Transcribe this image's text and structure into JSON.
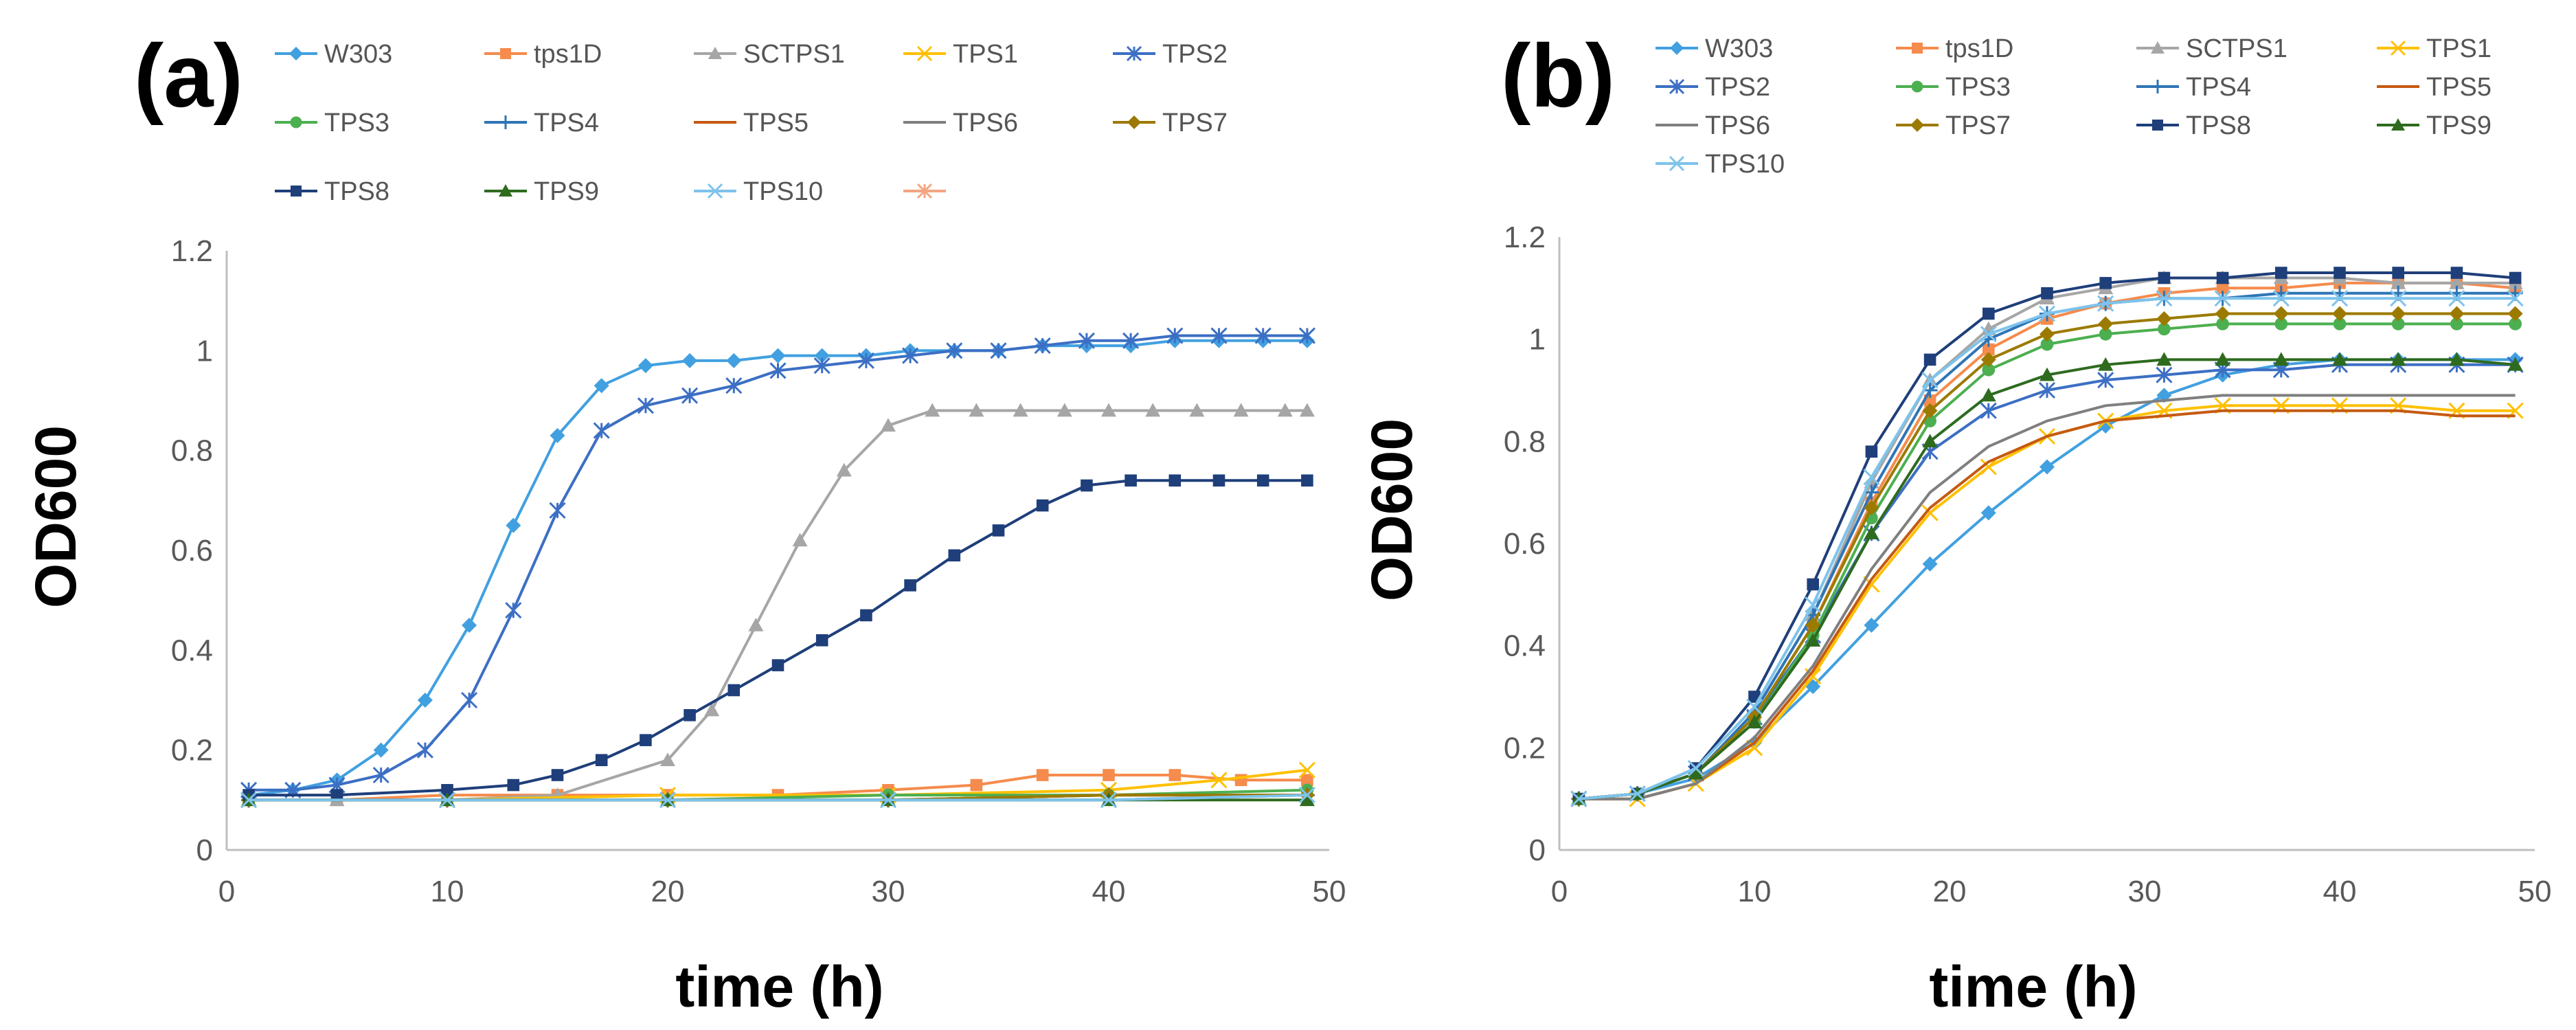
{
  "chart_data": [
    {
      "panel_label": "(a)",
      "type": "line",
      "xlabel": "time (h)",
      "ylabel": "OD600",
      "xlim": [
        0,
        50
      ],
      "ylim": [
        0,
        1.2
      ],
      "xticks": [
        "0",
        "10",
        "20",
        "30",
        "40",
        "50"
      ],
      "yticks": [
        "0",
        "0.2",
        "0.4",
        "0.6",
        "0.8",
        "1",
        "1.2"
      ],
      "legend_position": "top",
      "legend_extra_entry": "",
      "grid": false,
      "series": [
        {
          "name": "W303",
          "color": "#41A0E0",
          "marker": "diamond",
          "x": [
            1,
            3,
            5,
            7,
            9,
            11,
            13,
            15,
            17,
            19,
            21,
            23,
            25,
            27,
            29,
            31,
            33,
            35,
            37,
            39,
            41,
            43,
            45,
            47,
            49
          ],
          "y": [
            0.11,
            0.12,
            0.14,
            0.2,
            0.3,
            0.45,
            0.65,
            0.83,
            0.93,
            0.97,
            0.98,
            0.98,
            0.99,
            0.99,
            0.99,
            1.0,
            1.0,
            1.0,
            1.01,
            1.01,
            1.01,
            1.02,
            1.02,
            1.02,
            1.02
          ]
        },
        {
          "name": "tps1D",
          "color": "#F58B4C",
          "marker": "square",
          "x": [
            1,
            5,
            10,
            15,
            20,
            25,
            30,
            34,
            37,
            40,
            43,
            46,
            49
          ],
          "y": [
            0.1,
            0.1,
            0.11,
            0.11,
            0.11,
            0.11,
            0.12,
            0.13,
            0.15,
            0.15,
            0.15,
            0.14,
            0.14
          ]
        },
        {
          "name": "SCTPS1",
          "color": "#A6A6A6",
          "marker": "triangle",
          "x": [
            1,
            5,
            10,
            15,
            20,
            22,
            24,
            26,
            28,
            30,
            32,
            34,
            36,
            38,
            40,
            42,
            44,
            46,
            48,
            49
          ],
          "y": [
            0.1,
            0.1,
            0.1,
            0.11,
            0.18,
            0.28,
            0.45,
            0.62,
            0.76,
            0.85,
            0.88,
            0.88,
            0.88,
            0.88,
            0.88,
            0.88,
            0.88,
            0.88,
            0.88,
            0.88
          ]
        },
        {
          "name": "TPS1",
          "color": "#FFC000",
          "marker": "x",
          "x": [
            1,
            10,
            20,
            30,
            40,
            45,
            49
          ],
          "y": [
            0.1,
            0.1,
            0.11,
            0.11,
            0.12,
            0.14,
            0.16
          ]
        },
        {
          "name": "TPS2",
          "color": "#3C6FC4",
          "marker": "star",
          "x": [
            1,
            3,
            5,
            7,
            9,
            11,
            13,
            15,
            17,
            19,
            21,
            23,
            25,
            27,
            29,
            31,
            33,
            35,
            37,
            39,
            41,
            43,
            45,
            47,
            49
          ],
          "y": [
            0.12,
            0.12,
            0.13,
            0.15,
            0.2,
            0.3,
            0.48,
            0.68,
            0.84,
            0.89,
            0.91,
            0.93,
            0.96,
            0.97,
            0.98,
            0.99,
            1.0,
            1.0,
            1.01,
            1.02,
            1.02,
            1.03,
            1.03,
            1.03,
            1.03
          ]
        },
        {
          "name": "TPS3",
          "color": "#4CAF50",
          "marker": "circle",
          "x": [
            1,
            10,
            20,
            30,
            40,
            49
          ],
          "y": [
            0.1,
            0.1,
            0.1,
            0.11,
            0.11,
            0.12
          ]
        },
        {
          "name": "TPS4",
          "color": "#2E75B6",
          "marker": "plus",
          "x": [
            1,
            10,
            20,
            30,
            40,
            49
          ],
          "y": [
            0.1,
            0.1,
            0.1,
            0.1,
            0.11,
            0.11
          ]
        },
        {
          "name": "TPS5",
          "color": "#C55A11",
          "marker": "none",
          "x": [
            1,
            10,
            20,
            30,
            40,
            49
          ],
          "y": [
            0.1,
            0.1,
            0.1,
            0.1,
            0.11,
            0.11
          ]
        },
        {
          "name": "TPS6",
          "color": "#7F7F7F",
          "marker": "none",
          "x": [
            1,
            10,
            20,
            30,
            40,
            49
          ],
          "y": [
            0.1,
            0.1,
            0.1,
            0.1,
            0.1,
            0.11
          ]
        },
        {
          "name": "TPS7",
          "color": "#9C7A00",
          "marker": "diamond",
          "x": [
            1,
            10,
            20,
            30,
            40,
            49
          ],
          "y": [
            0.1,
            0.1,
            0.1,
            0.1,
            0.11,
            0.11
          ]
        },
        {
          "name": "TPS8",
          "color": "#1F3F7A",
          "marker": "square",
          "x": [
            1,
            5,
            10,
            13,
            15,
            17,
            19,
            21,
            23,
            25,
            27,
            29,
            31,
            33,
            35,
            37,
            39,
            41,
            43,
            45,
            47,
            49
          ],
          "y": [
            0.11,
            0.11,
            0.12,
            0.13,
            0.15,
            0.18,
            0.22,
            0.27,
            0.32,
            0.37,
            0.42,
            0.47,
            0.53,
            0.59,
            0.64,
            0.69,
            0.73,
            0.74,
            0.74,
            0.74,
            0.74,
            0.74
          ]
        },
        {
          "name": "TPS9",
          "color": "#2E6B1F",
          "marker": "triangle",
          "x": [
            1,
            10,
            20,
            30,
            40,
            49
          ],
          "y": [
            0.1,
            0.1,
            0.1,
            0.1,
            0.1,
            0.1
          ]
        },
        {
          "name": "TPS10",
          "color": "#7EC3EB",
          "marker": "x",
          "x": [
            1,
            10,
            20,
            30,
            40,
            49
          ],
          "y": [
            0.1,
            0.1,
            0.1,
            0.1,
            0.1,
            0.11
          ]
        }
      ]
    },
    {
      "panel_label": "(b)",
      "type": "line",
      "xlabel": "time (h)",
      "ylabel": "OD600",
      "xlim": [
        0,
        50
      ],
      "ylim": [
        0,
        1.2
      ],
      "xticks": [
        "0",
        "10",
        "20",
        "30",
        "40",
        "50"
      ],
      "yticks": [
        "0",
        "0.2",
        "0.4",
        "0.6",
        "0.8",
        "1",
        "1.2"
      ],
      "legend_position": "top",
      "grid": false,
      "series": [
        {
          "name": "W303",
          "color": "#41A0E0",
          "marker": "diamond",
          "x": [
            1,
            4,
            7,
            10,
            13,
            16,
            19,
            22,
            25,
            28,
            31,
            34,
            37,
            40,
            43,
            46,
            49
          ],
          "y": [
            0.1,
            0.11,
            0.14,
            0.21,
            0.32,
            0.44,
            0.56,
            0.66,
            0.75,
            0.83,
            0.89,
            0.93,
            0.95,
            0.96,
            0.96,
            0.96,
            0.96
          ]
        },
        {
          "name": "tps1D",
          "color": "#F58B4C",
          "marker": "square",
          "x": [
            1,
            4,
            7,
            10,
            13,
            16,
            19,
            22,
            25,
            28,
            31,
            34,
            37,
            40,
            43,
            46,
            49
          ],
          "y": [
            0.1,
            0.11,
            0.15,
            0.26,
            0.44,
            0.68,
            0.88,
            0.98,
            1.04,
            1.07,
            1.09,
            1.1,
            1.1,
            1.11,
            1.11,
            1.11,
            1.1
          ]
        },
        {
          "name": "SCTPS1",
          "color": "#A6A6A6",
          "marker": "triangle",
          "x": [
            1,
            4,
            7,
            10,
            13,
            16,
            19,
            22,
            25,
            28,
            31,
            34,
            37,
            40,
            43,
            46,
            49
          ],
          "y": [
            0.1,
            0.11,
            0.15,
            0.27,
            0.46,
            0.72,
            0.92,
            1.02,
            1.08,
            1.1,
            1.12,
            1.12,
            1.12,
            1.12,
            1.11,
            1.11,
            1.11
          ]
        },
        {
          "name": "TPS1",
          "color": "#FFC000",
          "marker": "x",
          "x": [
            1,
            4,
            7,
            10,
            13,
            16,
            19,
            22,
            25,
            28,
            31,
            34,
            37,
            40,
            43,
            46,
            49
          ],
          "y": [
            0.1,
            0.1,
            0.13,
            0.2,
            0.34,
            0.52,
            0.66,
            0.75,
            0.81,
            0.84,
            0.86,
            0.87,
            0.87,
            0.87,
            0.87,
            0.86,
            0.86
          ]
        },
        {
          "name": "TPS2",
          "color": "#3C6FC4",
          "marker": "star",
          "x": [
            1,
            4,
            7,
            10,
            13,
            16,
            19,
            22,
            25,
            28,
            31,
            34,
            37,
            40,
            43,
            46,
            49
          ],
          "y": [
            0.1,
            0.11,
            0.15,
            0.26,
            0.42,
            0.62,
            0.78,
            0.86,
            0.9,
            0.92,
            0.93,
            0.94,
            0.94,
            0.95,
            0.95,
            0.95,
            0.95
          ]
        },
        {
          "name": "TPS3",
          "color": "#4CAF50",
          "marker": "circle",
          "x": [
            1,
            4,
            7,
            10,
            13,
            16,
            19,
            22,
            25,
            28,
            31,
            34,
            37,
            40,
            43,
            46,
            49
          ],
          "y": [
            0.1,
            0.11,
            0.15,
            0.25,
            0.42,
            0.65,
            0.84,
            0.94,
            0.99,
            1.01,
            1.02,
            1.03,
            1.03,
            1.03,
            1.03,
            1.03,
            1.03
          ]
        },
        {
          "name": "TPS4",
          "color": "#2E75B6",
          "marker": "plus",
          "x": [
            1,
            4,
            7,
            10,
            13,
            16,
            19,
            22,
            25,
            28,
            31,
            34,
            37,
            40,
            43,
            46,
            49
          ],
          "y": [
            0.1,
            0.11,
            0.15,
            0.27,
            0.46,
            0.7,
            0.9,
            1.0,
            1.05,
            1.07,
            1.08,
            1.08,
            1.09,
            1.09,
            1.09,
            1.09,
            1.09
          ]
        },
        {
          "name": "TPS5",
          "color": "#C55A11",
          "marker": "none",
          "x": [
            1,
            4,
            7,
            10,
            13,
            16,
            19,
            22,
            25,
            28,
            31,
            34,
            37,
            40,
            43,
            46,
            49
          ],
          "y": [
            0.1,
            0.1,
            0.13,
            0.21,
            0.35,
            0.53,
            0.67,
            0.76,
            0.81,
            0.84,
            0.85,
            0.86,
            0.86,
            0.86,
            0.86,
            0.85,
            0.85
          ]
        },
        {
          "name": "TPS6",
          "color": "#7F7F7F",
          "marker": "none",
          "x": [
            1,
            4,
            7,
            10,
            13,
            16,
            19,
            22,
            25,
            28,
            31,
            34,
            37,
            40,
            43,
            46,
            49
          ],
          "y": [
            0.1,
            0.1,
            0.13,
            0.22,
            0.36,
            0.55,
            0.7,
            0.79,
            0.84,
            0.87,
            0.88,
            0.89,
            0.89,
            0.89,
            0.89,
            0.89,
            0.89
          ]
        },
        {
          "name": "TPS7",
          "color": "#9C7A00",
          "marker": "diamond",
          "x": [
            1,
            4,
            7,
            10,
            13,
            16,
            19,
            22,
            25,
            28,
            31,
            34,
            37,
            40,
            43,
            46,
            49
          ],
          "y": [
            0.1,
            0.11,
            0.15,
            0.26,
            0.44,
            0.67,
            0.86,
            0.96,
            1.01,
            1.03,
            1.04,
            1.05,
            1.05,
            1.05,
            1.05,
            1.05,
            1.05
          ]
        },
        {
          "name": "TPS8",
          "color": "#1F3F7A",
          "marker": "square",
          "x": [
            1,
            4,
            7,
            10,
            13,
            16,
            19,
            22,
            25,
            28,
            31,
            34,
            37,
            40,
            43,
            46,
            49
          ],
          "y": [
            0.1,
            0.11,
            0.16,
            0.3,
            0.52,
            0.78,
            0.96,
            1.05,
            1.09,
            1.11,
            1.12,
            1.12,
            1.13,
            1.13,
            1.13,
            1.13,
            1.12
          ]
        },
        {
          "name": "TPS9",
          "color": "#2E6B1F",
          "marker": "triangle",
          "x": [
            1,
            4,
            7,
            10,
            13,
            16,
            19,
            22,
            25,
            28,
            31,
            34,
            37,
            40,
            43,
            46,
            49
          ],
          "y": [
            0.1,
            0.11,
            0.15,
            0.25,
            0.41,
            0.62,
            0.8,
            0.89,
            0.93,
            0.95,
            0.96,
            0.96,
            0.96,
            0.96,
            0.96,
            0.96,
            0.95
          ]
        },
        {
          "name": "TPS10",
          "color": "#7EC3EB",
          "marker": "x",
          "x": [
            1,
            4,
            7,
            10,
            13,
            16,
            19,
            22,
            25,
            28,
            31,
            34,
            37,
            40,
            43,
            46,
            49
          ],
          "y": [
            0.1,
            0.11,
            0.16,
            0.28,
            0.48,
            0.73,
            0.92,
            1.01,
            1.05,
            1.07,
            1.08,
            1.08,
            1.08,
            1.08,
            1.08,
            1.08,
            1.08
          ]
        }
      ]
    }
  ]
}
